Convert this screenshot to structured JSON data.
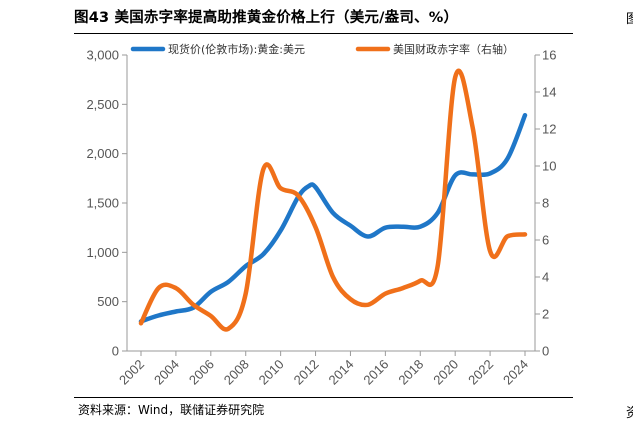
{
  "figure": {
    "title": "图43 美国赤字率提高助推黄金价格上行（美元/盎司、%）",
    "source": "资料来源：Wind，联储证券研究院",
    "right_edge_glyph": "图",
    "bottom_edge_glyph": "资"
  },
  "chart_data": {
    "type": "line",
    "title": "图43 美国赤字率提高助推黄金价格上行（美元/盎司、%）",
    "xlabel": "",
    "ylabel": "",
    "x_ticks": [
      "2002",
      "2004",
      "2006",
      "2008",
      "2010",
      "2012",
      "2014",
      "2016",
      "2018",
      "2020",
      "2022",
      "2024"
    ],
    "xlim": [
      2002,
      2024
    ],
    "y_left": {
      "lim": [
        0,
        3000
      ],
      "ticks": [
        0,
        500,
        1000,
        1500,
        2000,
        2500,
        3000
      ],
      "tick_labels": [
        "0",
        "500",
        "1,000",
        "1,500",
        "2,000",
        "2,500",
        "3,000"
      ]
    },
    "y_right": {
      "lim": [
        0,
        16
      ],
      "ticks": [
        0,
        2,
        4,
        6,
        8,
        10,
        12,
        14,
        16
      ],
      "tick_labels": [
        "0",
        "2",
        "4",
        "6",
        "8",
        "10",
        "12",
        "14",
        "16"
      ]
    },
    "grid": false,
    "series": [
      {
        "name": "现货价(伦敦市场):黄金:美元",
        "axis": "left",
        "color": "#1f77c8",
        "points": [
          [
            2002.0,
            300
          ],
          [
            2003.0,
            360
          ],
          [
            2004.0,
            400
          ],
          [
            2005.0,
            440
          ],
          [
            2006.0,
            600
          ],
          [
            2007.0,
            700
          ],
          [
            2008.0,
            860
          ],
          [
            2009.0,
            980
          ],
          [
            2010.0,
            1220
          ],
          [
            2011.0,
            1560
          ],
          [
            2011.6,
            1670
          ],
          [
            2012.0,
            1660
          ],
          [
            2013.0,
            1400
          ],
          [
            2014.0,
            1270
          ],
          [
            2015.0,
            1160
          ],
          [
            2016.0,
            1250
          ],
          [
            2017.0,
            1260
          ],
          [
            2018.0,
            1260
          ],
          [
            2019.0,
            1400
          ],
          [
            2020.0,
            1780
          ],
          [
            2021.0,
            1790
          ],
          [
            2022.0,
            1800
          ],
          [
            2023.0,
            1950
          ],
          [
            2024.0,
            2390
          ]
        ]
      },
      {
        "name": "美国财政赤字率（右轴）",
        "axis": "right",
        "color": "#f0701a",
        "points": [
          [
            2002.0,
            1.5
          ],
          [
            2003.0,
            3.4
          ],
          [
            2004.0,
            3.4
          ],
          [
            2005.0,
            2.5
          ],
          [
            2006.0,
            1.9
          ],
          [
            2007.0,
            1.2
          ],
          [
            2008.0,
            3.1
          ],
          [
            2009.0,
            9.8
          ],
          [
            2010.0,
            8.8
          ],
          [
            2011.0,
            8.4
          ],
          [
            2012.0,
            6.7
          ],
          [
            2013.0,
            4.0
          ],
          [
            2014.0,
            2.8
          ],
          [
            2015.0,
            2.5
          ],
          [
            2016.0,
            3.1
          ],
          [
            2017.0,
            3.4
          ],
          [
            2018.0,
            3.8
          ],
          [
            2019.0,
            4.6
          ],
          [
            2020.0,
            14.8
          ],
          [
            2021.0,
            12.1
          ],
          [
            2022.0,
            5.4
          ],
          [
            2023.0,
            6.2
          ],
          [
            2024.0,
            6.3
          ]
        ]
      }
    ],
    "legend": {
      "placement": "top",
      "entries": [
        "现货价(伦敦市场):黄金:美元",
        "美国财政赤字率（右轴）"
      ]
    }
  }
}
